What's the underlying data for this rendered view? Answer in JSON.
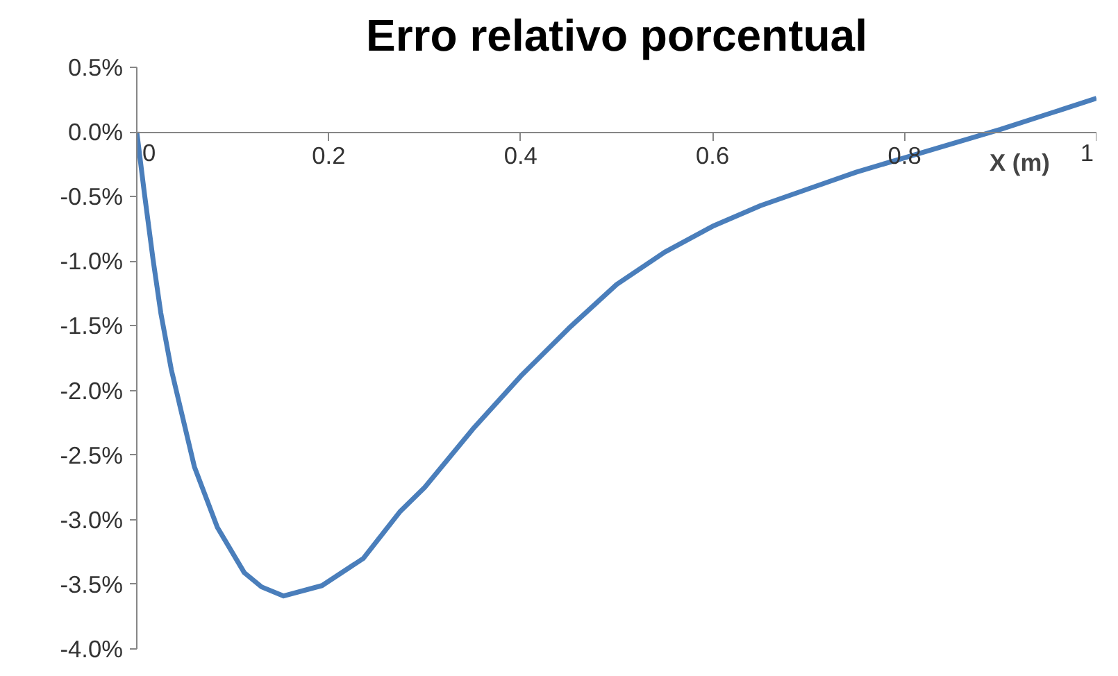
{
  "chart_data": {
    "type": "line",
    "title": "Erro relativo porcentual",
    "xlabel": "X (m)",
    "x": [
      0,
      0.004,
      0.008,
      0.017,
      0.025,
      0.036,
      0.06,
      0.084,
      0.112,
      0.13,
      0.153,
      0.193,
      0.236,
      0.274,
      0.3,
      0.35,
      0.4,
      0.45,
      0.5,
      0.55,
      0.6,
      0.65,
      0.7,
      0.75,
      0.8,
      0.85,
      0.9,
      0.95,
      1.0
    ],
    "series": [
      {
        "color": "#4a7ebb",
        "values": [
          0,
          -0.24,
          -0.48,
          -0.99,
          -1.4,
          -1.84,
          -2.59,
          -3.06,
          -3.41,
          -3.52,
          -3.59,
          -3.51,
          -3.3,
          -2.94,
          -2.75,
          -2.3,
          -1.89,
          -1.52,
          -1.18,
          -0.93,
          -0.73,
          -0.57,
          -0.44,
          -0.31,
          -0.2,
          -0.09,
          0.02,
          0.14,
          0.26
        ]
      }
    ],
    "xlim": [
      0,
      1
    ],
    "xticks": [
      0,
      0.2,
      0.4,
      0.6,
      0.8,
      1
    ],
    "ylim": [
      -4,
      0.5
    ],
    "yticks": [
      {
        "value": 0.5,
        "label": "0.5%"
      },
      {
        "value": 0,
        "label": "0.0%"
      },
      {
        "value": -0.5,
        "label": "-0.5%"
      },
      {
        "value": -1,
        "label": "-1.0%"
      },
      {
        "value": -1.5,
        "label": "-1.5%"
      },
      {
        "value": -2,
        "label": "-2.0%"
      },
      {
        "value": -2.5,
        "label": "-2.5%"
      },
      {
        "value": -3,
        "label": "-3.0%"
      },
      {
        "value": -3.5,
        "label": "-3.5%"
      },
      {
        "value": -4,
        "label": "-4.0%"
      }
    ],
    "grid": false,
    "marker": "none",
    "line_style": "solid"
  }
}
